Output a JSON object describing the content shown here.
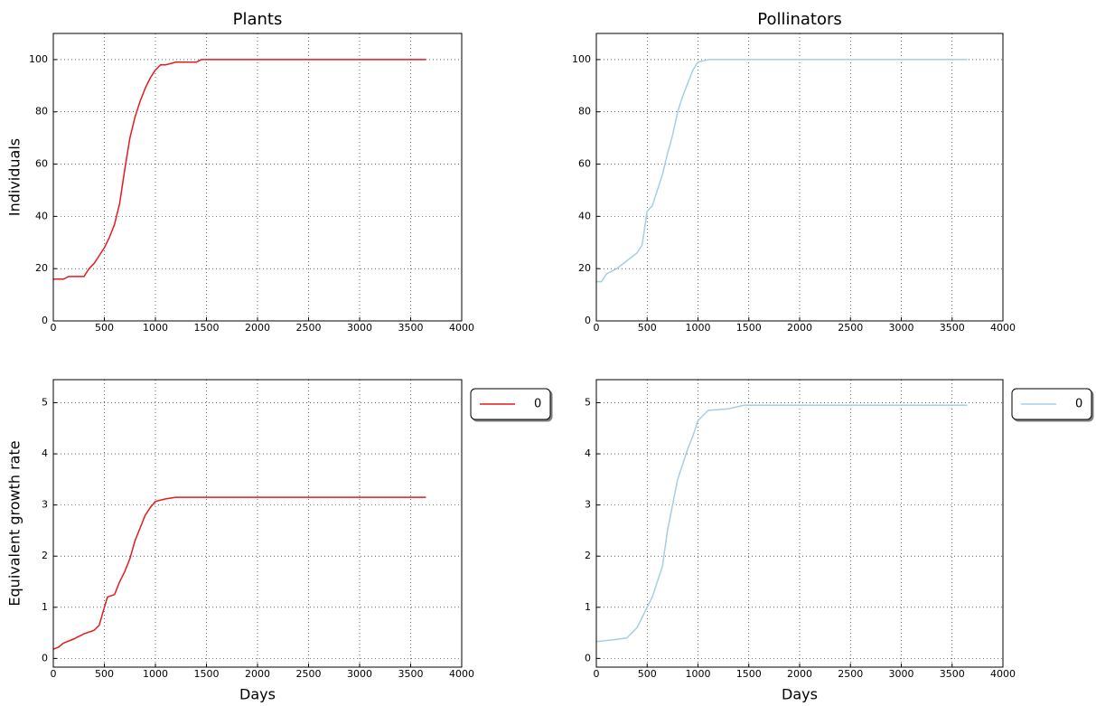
{
  "chart_data": [
    {
      "type": "line",
      "title": "Plants",
      "ylabel": "Individuals",
      "x": [
        0,
        100,
        150,
        300,
        350,
        400,
        450,
        500,
        550,
        600,
        650,
        700,
        750,
        800,
        850,
        900,
        950,
        1000,
        1050,
        1100,
        1200,
        1400,
        1450,
        3650
      ],
      "series": [
        {
          "color": "#e41a1c",
          "values": [
            16,
            16,
            17,
            17,
            20,
            22,
            25,
            28,
            32,
            37,
            45,
            58,
            70,
            78,
            84,
            89,
            93,
            96,
            98,
            98,
            99,
            99,
            100,
            100
          ]
        }
      ],
      "xlim": [
        0,
        4000
      ],
      "ylim": [
        0,
        110
      ],
      "xticks": [
        0,
        500,
        1000,
        1500,
        2000,
        2500,
        3000,
        3500,
        4000
      ],
      "yticks": [
        0,
        20,
        40,
        60,
        80,
        100
      ],
      "grid": true
    },
    {
      "type": "line",
      "title": "Pollinators",
      "x": [
        0,
        50,
        100,
        200,
        300,
        400,
        450,
        500,
        550,
        600,
        650,
        700,
        750,
        800,
        850,
        900,
        950,
        1000,
        1100,
        3650
      ],
      "series": [
        {
          "color": "#a6cee3",
          "values": [
            15,
            15,
            18,
            20,
            23,
            26,
            29,
            42,
            44,
            50,
            56,
            64,
            71,
            80,
            86,
            91,
            96,
            99,
            100,
            100
          ]
        }
      ],
      "xlim": [
        0,
        4000
      ],
      "ylim": [
        0,
        110
      ],
      "xticks": [
        0,
        500,
        1000,
        1500,
        2000,
        2500,
        3000,
        3500,
        4000
      ],
      "yticks": [
        0,
        20,
        40,
        60,
        80,
        100
      ],
      "grid": true
    },
    {
      "type": "line",
      "ylabel": "Equivalent growth rate",
      "xlabel": "Days",
      "x": [
        0,
        50,
        100,
        200,
        300,
        400,
        450,
        500,
        530,
        600,
        650,
        700,
        750,
        800,
        850,
        900,
        950,
        1000,
        1100,
        1200,
        3650
      ],
      "series": [
        {
          "name": "0",
          "color": "#e41a1c",
          "values": [
            0.18,
            0.22,
            0.3,
            0.38,
            0.48,
            0.55,
            0.65,
            1.0,
            1.2,
            1.25,
            1.5,
            1.7,
            1.95,
            2.3,
            2.55,
            2.8,
            2.95,
            3.07,
            3.12,
            3.15,
            3.15
          ]
        }
      ],
      "xlim": [
        0,
        4000
      ],
      "ylim": [
        -0.17,
        5.45
      ],
      "xticks": [
        0,
        500,
        1000,
        1500,
        2000,
        2500,
        3000,
        3500,
        4000
      ],
      "yticks": [
        0,
        1,
        2,
        3,
        4,
        5
      ],
      "grid": true,
      "legend": "outside upper right"
    },
    {
      "type": "line",
      "xlabel": "Days",
      "x": [
        0,
        150,
        300,
        400,
        450,
        500,
        550,
        600,
        650,
        700,
        750,
        800,
        850,
        900,
        950,
        1000,
        1100,
        1300,
        1450,
        3650
      ],
      "series": [
        {
          "name": "0",
          "color": "#a6cee3",
          "values": [
            0.33,
            0.36,
            0.4,
            0.6,
            0.8,
            1.0,
            1.2,
            1.5,
            1.8,
            2.5,
            3.0,
            3.5,
            3.8,
            4.1,
            4.35,
            4.65,
            4.85,
            4.88,
            4.95,
            4.95
          ]
        }
      ],
      "xlim": [
        0,
        4000
      ],
      "ylim": [
        -0.17,
        5.45
      ],
      "xticks": [
        0,
        500,
        1000,
        1500,
        2000,
        2500,
        3000,
        3500,
        4000
      ],
      "yticks": [
        0,
        1,
        2,
        3,
        4,
        5
      ],
      "grid": true,
      "legend": "outside upper right"
    }
  ]
}
